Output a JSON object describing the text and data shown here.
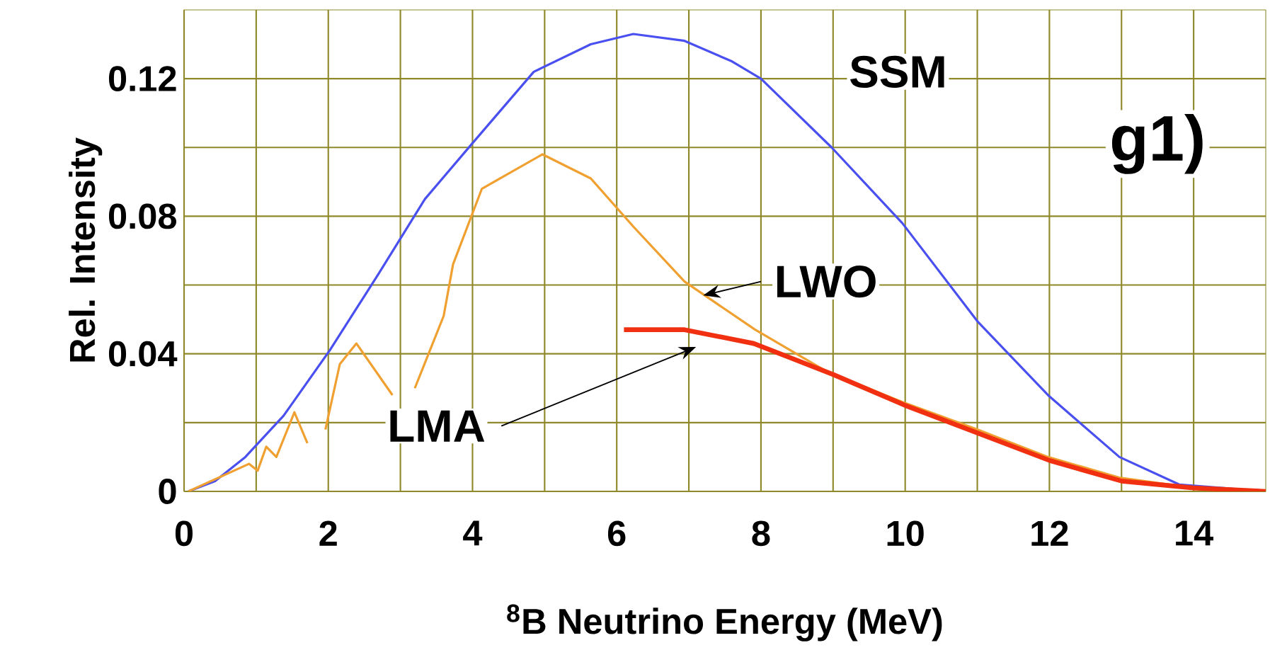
{
  "chart_data": {
    "type": "line",
    "xlabel": "$^{8}$B  Neutrino Energy (MeV)",
    "ylabel": "Rel. Intensity",
    "annotations": [
      "g1)"
    ],
    "xlim": [
      0,
      15
    ],
    "ylim": [
      0,
      0.14
    ],
    "xticks": [
      0,
      {
        "value": 1,
        "label": null
      },
      2,
      {
        "value": 3,
        "label": null
      },
      4,
      {
        "value": 5,
        "label": null
      },
      6,
      {
        "value": 7,
        "label": null
      },
      8,
      {
        "value": 9,
        "label": null
      },
      10,
      {
        "value": 11,
        "label": null
      },
      12,
      {
        "value": 13,
        "label": null
      },
      14
    ],
    "yticks": [
      0,
      {
        "value": 0.02,
        "label": null
      },
      0.04,
      {
        "value": 0.06,
        "label": null
      },
      0.08,
      {
        "value": 0.1,
        "label": null
      },
      0.12
    ],
    "grid": true,
    "marker": "none",
    "line_style": "solid",
    "series": [
      {
        "name": "SSM",
        "color": "#4a50f0",
        "x": [
          0.06,
          0.43,
          0.85,
          1.38,
          2.02,
          2.69,
          3.34,
          3.99,
          4.85,
          5.64,
          6.23,
          6.94,
          7.6,
          8,
          8.98,
          9.96,
          11.0,
          11.98,
          12.97,
          13.8,
          15
        ],
        "values": [
          0,
          0.003,
          0.01,
          0.022,
          0.041,
          0.063,
          0.085,
          0.101,
          0.122,
          0.13,
          0.133,
          0.131,
          0.125,
          0.12,
          0.1,
          0.078,
          0.0495,
          0.028,
          0.01,
          0.002,
          0
        ]
      },
      {
        "name": "LWO",
        "color": "#f0a030",
        "x": [
          0.06,
          0.9,
          1.02,
          1.14,
          1.28,
          1.53,
          1.71,
          1.85,
          1.96,
          2.16,
          2.39,
          2.89,
          3.05,
          3.2,
          3.6,
          3.73,
          4.13,
          4.97,
          5.64,
          6.23,
          6.94,
          7.92,
          8.9,
          9.96,
          11.0,
          11.98,
          12.97,
          14,
          15
        ],
        "values": [
          0,
          0.008,
          0.006,
          0.013,
          0.01,
          0.023,
          0.014,
          null,
          0.018,
          0.037,
          0.043,
          0.028,
          null,
          0.03,
          0.051,
          0.066,
          0.088,
          0.098,
          0.091,
          0.077,
          0.061,
          0.047,
          0.035,
          0.026,
          0.018,
          0.01,
          0.004,
          0.001,
          0
        ]
      },
      {
        "name": "LMA",
        "color": "#f03010",
        "x": [
          6.1,
          6.94,
          7.9,
          9,
          10,
          11,
          12,
          13,
          14,
          15
        ],
        "values": [
          0.047,
          0.047,
          0.043,
          0.034,
          0.025,
          0.017,
          0.009,
          0.003,
          0.001,
          0
        ]
      }
    ]
  }
}
